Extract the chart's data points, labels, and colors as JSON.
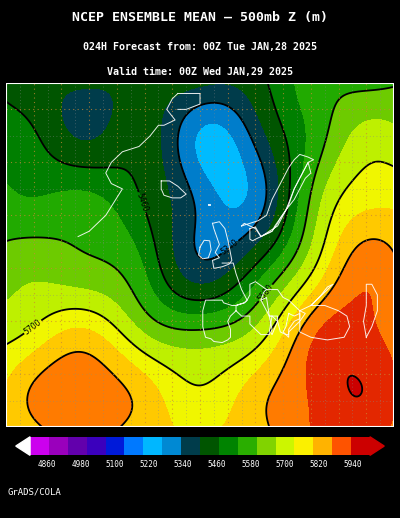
{
  "title_line1": "NCEP ENSEMBLE MEAN – 500mb Z (m)",
  "title_line2": "024H Forecast from: 00Z Tue JAN,28 2025",
  "title_line3": "Valid time: 00Z Wed JAN,29 2025",
  "footer_text": "GrADS/COLA",
  "colorbar_labels": [
    "4860",
    "4980",
    "5100",
    "5220",
    "5340",
    "5460",
    "5580",
    "5700",
    "5820",
    "5940"
  ],
  "background_color": "#000000",
  "cmap_colors": [
    [
      0.0,
      "#CC00EE"
    ],
    [
      0.06,
      "#9900BB"
    ],
    [
      0.11,
      "#6600AA"
    ],
    [
      0.17,
      "#4400BB"
    ],
    [
      0.22,
      "#0000CC"
    ],
    [
      0.28,
      "#0066FF"
    ],
    [
      0.33,
      "#00AAFF"
    ],
    [
      0.39,
      "#00CCFF"
    ],
    [
      0.44,
      "#003399"
    ],
    [
      0.5,
      "#004400"
    ],
    [
      0.56,
      "#006600"
    ],
    [
      0.61,
      "#009900"
    ],
    [
      0.67,
      "#44BB00"
    ],
    [
      0.72,
      "#99DD00"
    ],
    [
      0.78,
      "#DDFF00"
    ],
    [
      0.83,
      "#FFEE00"
    ],
    [
      0.89,
      "#FFAA00"
    ],
    [
      0.94,
      "#FF5500"
    ],
    [
      1.0,
      "#CC0000"
    ]
  ],
  "vmin": 4860,
  "vmax": 5940,
  "levels_fill_step": 60,
  "levels_contour_step": 120,
  "label_levels": [
    5100,
    5220,
    5340,
    5460,
    5580,
    5700
  ],
  "grid_color_orange": "#CC8833",
  "grid_color_grey": "#888888"
}
